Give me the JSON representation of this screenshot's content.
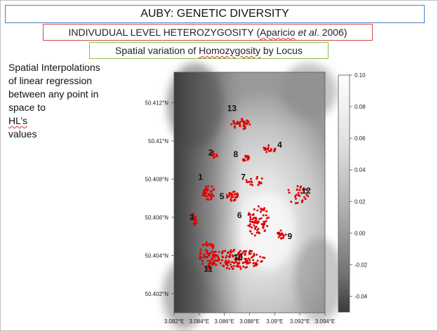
{
  "title": "AUBY: GENETIC DIVERSITY",
  "subtitle1": {
    "pre": "INDIVUDUAL LEVEL HETEROZYGOSITY (",
    "author": "Aparicio",
    "etal": " et al",
    "post": ". 2006)"
  },
  "subtitle2": {
    "pre": "Spatial variation of ",
    "word": "Homozygosity",
    "post": " by Locus"
  },
  "description": {
    "lines": [
      "Spatial Interpolations",
      "of linear regression",
      "between any point in",
      "space to HL’s values"
    ]
  },
  "chart_data": {
    "type": "heatmap",
    "x_ticks": [
      "3.082°E",
      "3.084°E",
      "3.086°E",
      "3.088°E",
      "3.09°E",
      "3.092°E",
      "3.094°E"
    ],
    "y_ticks": [
      "50.412°N",
      "50.41°N",
      "50.408°N",
      "50.406°N",
      "50.404°N",
      "50.402°N"
    ],
    "xlim": [
      3.082,
      3.094
    ],
    "ylim": [
      50.401,
      50.4136
    ],
    "colorbar": {
      "ticks": [
        "0.10",
        "0.08",
        "0.06",
        "0.04",
        "0.02",
        "0.00",
        "-0.02",
        "-0.04"
      ],
      "range": [
        -0.05,
        0.1
      ]
    },
    "point_color": "#e00000",
    "clusters": [
      {
        "label": "1",
        "x": 3.0847,
        "y": 50.4073,
        "label_x": 3.0841,
        "label_y": 50.4081
      },
      {
        "label": "2",
        "x": 3.0852,
        "y": 50.4093,
        "label_x": 3.0849,
        "label_y": 50.4094
      },
      {
        "label": "3",
        "x": 3.0836,
        "y": 50.4059,
        "label_x": 3.0834,
        "label_y": 50.406
      },
      {
        "label": "4",
        "x": 3.0896,
        "y": 50.4096,
        "label_x": 3.0904,
        "label_y": 50.4098
      },
      {
        "label": "5",
        "x": 3.0867,
        "y": 50.4071,
        "label_x": 3.0858,
        "label_y": 50.4071
      },
      {
        "label": "6",
        "x": 3.0887,
        "y": 50.4058,
        "label_x": 3.0872,
        "label_y": 50.4061
      },
      {
        "label": "7",
        "x": 3.0885,
        "y": 50.4079,
        "label_x": 3.0875,
        "label_y": 50.4081
      },
      {
        "label": "8",
        "x": 3.0877,
        "y": 50.4091,
        "label_x": 3.0869,
        "label_y": 50.4093
      },
      {
        "label": "9",
        "x": 3.0905,
        "y": 50.4051,
        "label_x": 3.0912,
        "label_y": 50.405
      },
      {
        "label": "10",
        "x": 3.087,
        "y": 50.4038,
        "label_x": 3.0871,
        "label_y": 50.4039
      },
      {
        "label": "11",
        "x": 3.0847,
        "y": 50.404,
        "label_x": 3.0847,
        "label_y": 50.4033
      },
      {
        "label": "12",
        "x": 3.0918,
        "y": 50.4072,
        "label_x": 3.0925,
        "label_y": 50.4074
      },
      {
        "label": "13",
        "x": 3.0873,
        "y": 50.4109,
        "label_x": 3.0866,
        "label_y": 50.4117
      }
    ]
  }
}
